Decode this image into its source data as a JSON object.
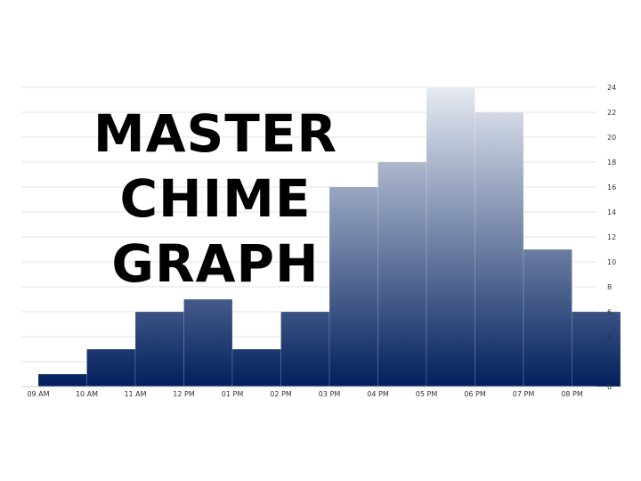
{
  "chart_data": {
    "type": "bar",
    "title_lines": [
      "MASTER",
      "CHIME",
      "GRAPH"
    ],
    "categories": [
      "09 AM",
      "10 AM",
      "11 AM",
      "12 PM",
      "01 PM",
      "02 PM",
      "03 PM",
      "04 PM",
      "05 PM",
      "06 PM",
      "07 PM",
      "08 PM"
    ],
    "values": [
      1,
      3,
      6,
      7,
      3,
      6,
      16,
      18,
      24,
      22,
      11,
      6
    ],
    "ylim": [
      0,
      24
    ],
    "yticks": [
      "0",
      "2",
      "4",
      "6",
      "8",
      "10",
      "12",
      "14",
      "16",
      "18",
      "20",
      "22",
      "24"
    ],
    "grid": true,
    "y_axis_side": "right",
    "colors": {
      "gradient_top": "#E6EAF2",
      "gradient_bottom": "#02205E",
      "grid": "#E3E3E3"
    }
  }
}
